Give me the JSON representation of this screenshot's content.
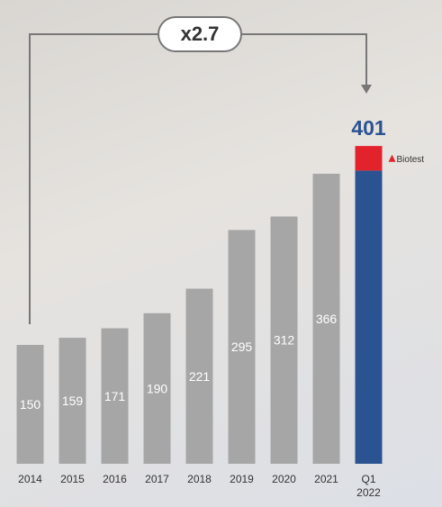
{
  "chart_data": {
    "type": "bar",
    "stacked": true,
    "categories": [
      "2014",
      "2015",
      "2016",
      "2017",
      "2018",
      "2019",
      "2020",
      "2021",
      "Q1 2022"
    ],
    "series": [
      {
        "color": "#a6a6a6",
        "values": [
          150,
          159,
          171,
          190,
          221,
          295,
          312,
          366,
          null
        ]
      },
      {
        "color": "#2b5391",
        "values": [
          null,
          null,
          null,
          null,
          null,
          null,
          null,
          null,
          370
        ]
      },
      {
        "name": "Biotest",
        "color": "#e3232b",
        "values": [
          null,
          null,
          null,
          null,
          null,
          null,
          null,
          null,
          31
        ]
      }
    ],
    "total_label": 401,
    "annotation": "x2.7",
    "ylim": [
      0,
      450
    ]
  }
}
